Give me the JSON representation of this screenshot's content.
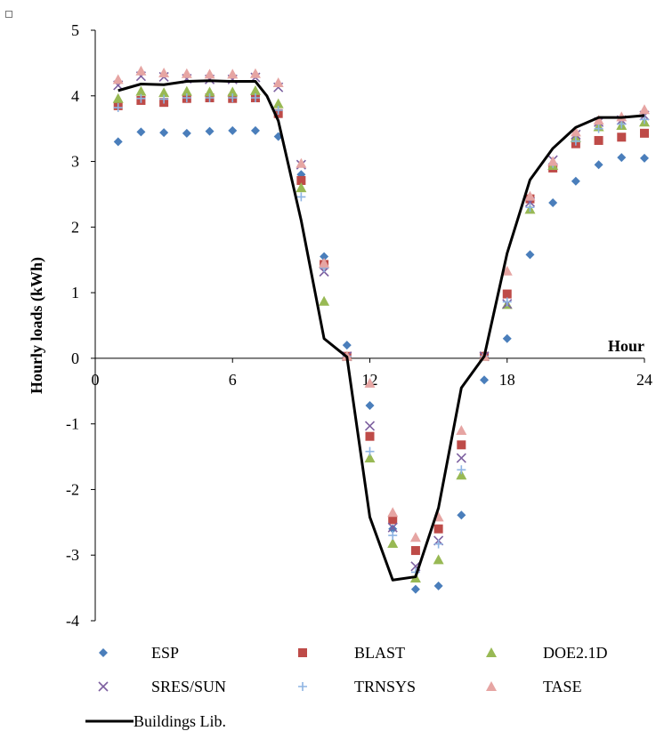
{
  "chart_data": {
    "type": "scatter",
    "xlabel": "Hour",
    "ylabel": "Hourly loads (kWh)",
    "xlim": [
      0,
      24
    ],
    "ylim": [
      -4,
      5
    ],
    "xticks": [
      "0",
      "6",
      "12",
      "18",
      "24"
    ],
    "yticks": [
      "-4",
      "-3",
      "-2",
      "-1",
      "0",
      "1",
      "2",
      "3",
      "4",
      "5"
    ],
    "grid": false,
    "legend_position": "bottom",
    "x": [
      1,
      2,
      3,
      4,
      5,
      6,
      7,
      8,
      9,
      10,
      11,
      12,
      13,
      14,
      15,
      16,
      17,
      18,
      19,
      20,
      21,
      22,
      23,
      24
    ],
    "series": [
      {
        "name": "ESP",
        "marker": "diamond",
        "color": "#4a7ebb",
        "values": [
          3.3,
          3.45,
          3.44,
          3.43,
          3.46,
          3.47,
          3.47,
          3.38,
          2.8,
          1.55,
          0.2,
          -0.72,
          -2.6,
          -3.52,
          -3.47,
          -2.39,
          -0.33,
          0.3,
          1.58,
          2.37,
          2.7,
          2.95,
          3.06,
          3.05
        ]
      },
      {
        "name": "BLAST",
        "marker": "square",
        "color": "#be4b48",
        "values": [
          3.85,
          3.93,
          3.9,
          3.96,
          3.97,
          3.96,
          3.97,
          3.73,
          2.71,
          1.43,
          0.03,
          -1.19,
          -2.46,
          -2.93,
          -2.6,
          -1.32,
          0.03,
          0.98,
          2.43,
          2.9,
          3.27,
          3.32,
          3.37,
          3.43
        ]
      },
      {
        "name": "DOE2.1D",
        "marker": "triangle",
        "color": "#98b954",
        "values": [
          3.96,
          4.07,
          4.05,
          4.07,
          4.06,
          4.06,
          4.08,
          3.88,
          2.6,
          0.87,
          0.03,
          -1.52,
          -2.82,
          -3.35,
          -3.07,
          -1.78,
          0.03,
          0.82,
          2.27,
          2.94,
          3.36,
          3.53,
          3.55,
          3.6
        ]
      },
      {
        "name": "SRES/SUN",
        "marker": "x",
        "color": "#7d60a0",
        "values": [
          4.16,
          4.3,
          4.29,
          4.26,
          4.25,
          4.25,
          4.28,
          4.13,
          2.95,
          1.32,
          0.03,
          -1.03,
          -2.58,
          -3.17,
          -2.78,
          -1.52,
          0.03,
          0.83,
          2.38,
          3.02,
          3.41,
          3.6,
          3.63,
          3.7
        ]
      },
      {
        "name": "TRNSYS",
        "marker": "plus",
        "color": "#8eb4e3",
        "values": [
          3.82,
          3.96,
          3.95,
          3.97,
          3.97,
          3.97,
          3.97,
          3.78,
          2.46,
          1.38,
          0.03,
          -1.42,
          -2.7,
          -3.26,
          -2.83,
          -1.7,
          0.03,
          0.86,
          2.3,
          2.97,
          3.31,
          3.5,
          3.57,
          3.64
        ]
      },
      {
        "name": "TASE",
        "marker": "triangle",
        "color": "#e6a5a3",
        "values": [
          4.25,
          4.38,
          4.35,
          4.34,
          4.33,
          4.33,
          4.34,
          4.2,
          2.97,
          1.45,
          0.03,
          -0.38,
          -2.35,
          -2.73,
          -2.42,
          -1.1,
          0.03,
          1.33,
          2.47,
          3.0,
          3.45,
          3.63,
          3.68,
          3.79
        ]
      },
      {
        "name": "Buildings Lib.",
        "line": true,
        "color": "#000000",
        "x": [
          1,
          2,
          3,
          4,
          5,
          6,
          7,
          7.5,
          8,
          9,
          10,
          11,
          12,
          13,
          14,
          15,
          16,
          17,
          18,
          19,
          20,
          21,
          22,
          23,
          24
        ],
        "values": [
          4.08,
          4.18,
          4.17,
          4.22,
          4.23,
          4.22,
          4.22,
          4.0,
          3.62,
          2.1,
          0.3,
          0.02,
          -2.42,
          -3.38,
          -3.33,
          -2.28,
          -0.45,
          0.03,
          1.6,
          2.72,
          3.2,
          3.52,
          3.67,
          3.67,
          3.7
        ]
      }
    ]
  }
}
